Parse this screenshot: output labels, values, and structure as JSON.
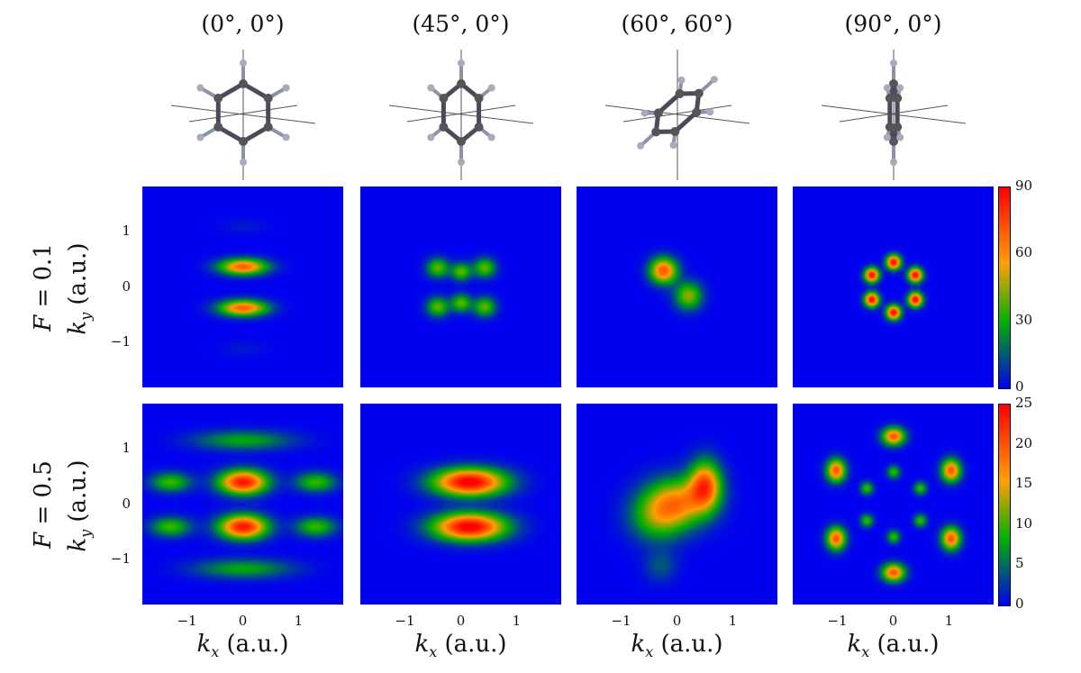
{
  "chart_data": {
    "type": "heatmap",
    "column_titles": [
      "(0°, 0°)",
      "(45°, 0°)",
      "(60°, 60°)",
      "(90°, 0°)"
    ],
    "row_labels": [
      "F = 0.1",
      "F = 0.5"
    ],
    "xlabel": "kx (a.u.)",
    "ylabel": "ky (a.u.)",
    "xlim": [
      -1.8,
      1.8
    ],
    "ylim": [
      -1.8,
      1.8
    ],
    "xticks": [
      "−1",
      "0",
      "1"
    ],
    "yticks": [
      "1",
      "0",
      "−1"
    ],
    "tick_values": [
      -1,
      0,
      1
    ],
    "colorbars": [
      {
        "range": [
          0,
          90
        ],
        "ticks": [
          "90",
          "60",
          "30",
          "0"
        ],
        "tick_values": [
          90,
          60,
          30,
          0
        ]
      },
      {
        "range": [
          0,
          25
        ],
        "ticks": [
          "25",
          "20",
          "15",
          "10",
          "5",
          "0"
        ],
        "tick_values": [
          25,
          20,
          15,
          10,
          5,
          0
        ]
      }
    ],
    "colormap": [
      "#0000f0",
      "#00b000",
      "#ffa000",
      "#ff0000"
    ],
    "rows": [
      [
        {
          "blobs": [
            [
              0,
              0.37,
              0.3,
              0.1,
              70
            ],
            [
              0,
              -0.37,
              0.3,
              0.1,
              70
            ],
            [
              0,
              1.1,
              0.3,
              0.1,
              4
            ],
            [
              0,
              -1.1,
              0.3,
              0.1,
              4
            ]
          ]
        },
        {
          "blobs": [
            [
              -0.42,
              0.35,
              0.14,
              0.12,
              40
            ],
            [
              0,
              0.28,
              0.12,
              0.11,
              40
            ],
            [
              0.42,
              0.35,
              0.14,
              0.12,
              40
            ],
            [
              -0.42,
              -0.35,
              0.14,
              0.12,
              40
            ],
            [
              0,
              -0.28,
              0.12,
              0.11,
              40
            ],
            [
              0.42,
              -0.35,
              0.14,
              0.12,
              40
            ]
          ]
        },
        {
          "blobs": [
            [
              -0.25,
              0.3,
              0.17,
              0.16,
              72
            ],
            [
              0.2,
              -0.15,
              0.17,
              0.17,
              45
            ]
          ]
        },
        {
          "blobs": [
            [
              0,
              0.45,
              0.09,
              0.09,
              88
            ],
            [
              0.39,
              0.22,
              0.09,
              0.09,
              88
            ],
            [
              0.39,
              -0.22,
              0.09,
              0.09,
              88
            ],
            [
              0,
              -0.45,
              0.09,
              0.09,
              88
            ],
            [
              -0.39,
              -0.22,
              0.09,
              0.09,
              88
            ],
            [
              -0.39,
              0.22,
              0.09,
              0.09,
              88
            ]
          ]
        }
      ],
      [
        {
          "blobs": [
            [
              0,
              0.4,
              0.3,
              0.15,
              24
            ],
            [
              0,
              -0.4,
              0.3,
              0.15,
              24
            ],
            [
              1.3,
              0.4,
              0.25,
              0.12,
              10
            ],
            [
              -1.3,
              0.4,
              0.25,
              0.12,
              10
            ],
            [
              1.3,
              -0.4,
              0.25,
              0.12,
              10
            ],
            [
              -1.3,
              -0.4,
              0.25,
              0.12,
              10
            ],
            [
              0,
              1.15,
              0.6,
              0.12,
              8
            ],
            [
              0,
              -1.15,
              0.6,
              0.12,
              8
            ]
          ]
        },
        {
          "blobs": [
            [
              0.15,
              0.4,
              0.45,
              0.17,
              26
            ],
            [
              0.15,
              -0.4,
              0.45,
              0.17,
              26
            ]
          ]
        },
        {
          "blobs": [
            [
              0,
              0.05,
              0.4,
              0.3,
              15
            ],
            [
              0.5,
              0.35,
              0.2,
              0.3,
              19
            ],
            [
              -0.35,
              -0.25,
              0.35,
              0.3,
              9
            ],
            [
              -0.3,
              -1.1,
              0.2,
              0.2,
              4
            ]
          ]
        },
        {
          "blobs": [
            [
              0,
              1.22,
              0.14,
              0.11,
              20
            ],
            [
              1.03,
              0.61,
              0.12,
              0.14,
              20
            ],
            [
              1.03,
              -0.61,
              0.12,
              0.14,
              20
            ],
            [
              0,
              -1.22,
              0.14,
              0.11,
              20
            ],
            [
              -1.03,
              -0.61,
              0.12,
              0.14,
              20
            ],
            [
              -1.03,
              0.61,
              0.12,
              0.14,
              20
            ],
            [
              0,
              0.58,
              0.08,
              0.08,
              10
            ],
            [
              0.48,
              0.29,
              0.08,
              0.08,
              10
            ],
            [
              0.48,
              -0.29,
              0.08,
              0.08,
              10
            ],
            [
              0,
              -0.58,
              0.08,
              0.08,
              10
            ],
            [
              -0.48,
              -0.29,
              0.08,
              0.08,
              10
            ],
            [
              -0.48,
              0.29,
              0.08,
              0.08,
              10
            ]
          ]
        }
      ]
    ]
  },
  "molecule_orientations": [
    [
      0,
      0
    ],
    [
      45,
      0
    ],
    [
      60,
      60
    ],
    [
      90,
      0
    ]
  ]
}
